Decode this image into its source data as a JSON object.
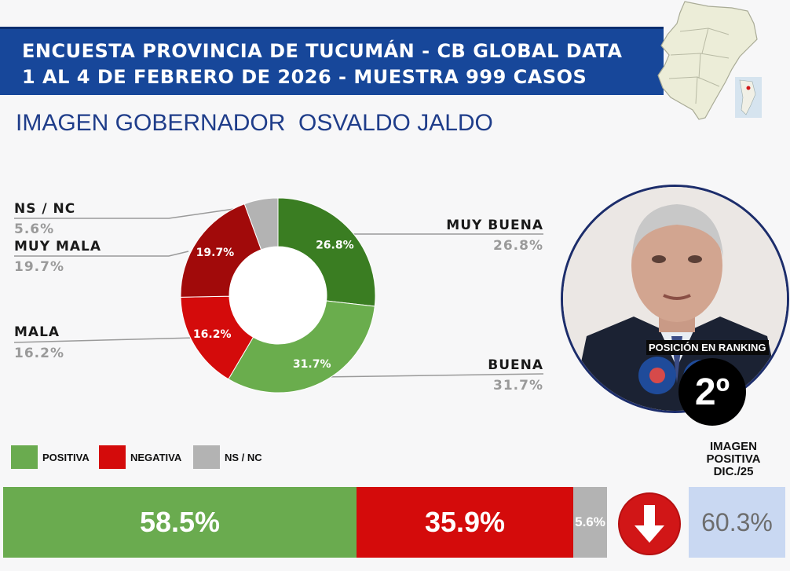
{
  "header": {
    "line1": "ENCUESTA PROVINCIA DE TUCUMÁN - CB GLOBAL DATA",
    "line2": "1 AL 4 DE FEBRERO DE 2026 - MUESTRA 999 CASOS"
  },
  "subtitle": "IMAGEN GOBERNADOR  OSVALDO JALDO",
  "rank": {
    "label": "POSICIÓN EN RANKING",
    "value": "2º"
  },
  "previous": {
    "label_lines": [
      "IMAGEN",
      "POSITIVA",
      "DIC./25"
    ],
    "value": "60.3%",
    "trend_icon": "down-arrow-icon"
  },
  "colors": {
    "header_bg": "#17479a",
    "muy_buena": "#3a7d22",
    "buena": "#6aad4d",
    "mala": "#d40b0b",
    "muy_mala": "#a10a0a",
    "ns_nc": "#b3b3b3",
    "positiva": "#6aab4f",
    "negativa": "#d40b0b",
    "previous_box": "#c9d8f2"
  },
  "chart_data": [
    {
      "type": "pie",
      "variant": "donut",
      "categories": [
        "MUY BUENA",
        "BUENA",
        "MALA",
        "MUY MALA",
        "NS / NC"
      ],
      "values": [
        26.8,
        31.7,
        16.2,
        19.7,
        5.6
      ],
      "labels": [
        "26.8%",
        "31.7%",
        "16.2%",
        "19.7%",
        "5.6%"
      ],
      "slice_labels": [
        "26.8%",
        "31.7%",
        "16.2%",
        "19.7%",
        ""
      ],
      "colors": [
        "#3a7d22",
        "#6aad4d",
        "#d40b0b",
        "#a10a0a",
        "#b3b3b3"
      ]
    },
    {
      "type": "bar",
      "variant": "stacked-horizontal",
      "legend": [
        "POSITIVA",
        "NEGATIVA",
        "NS / NC"
      ],
      "categories": [
        "POSITIVA",
        "NEGATIVA",
        "NS / NC"
      ],
      "values": [
        58.5,
        35.9,
        5.6
      ],
      "labels": [
        "58.5%",
        "35.9%",
        "5.6%"
      ],
      "colors": [
        "#6aab4f",
        "#d40b0b",
        "#b3b3b3"
      ]
    }
  ]
}
